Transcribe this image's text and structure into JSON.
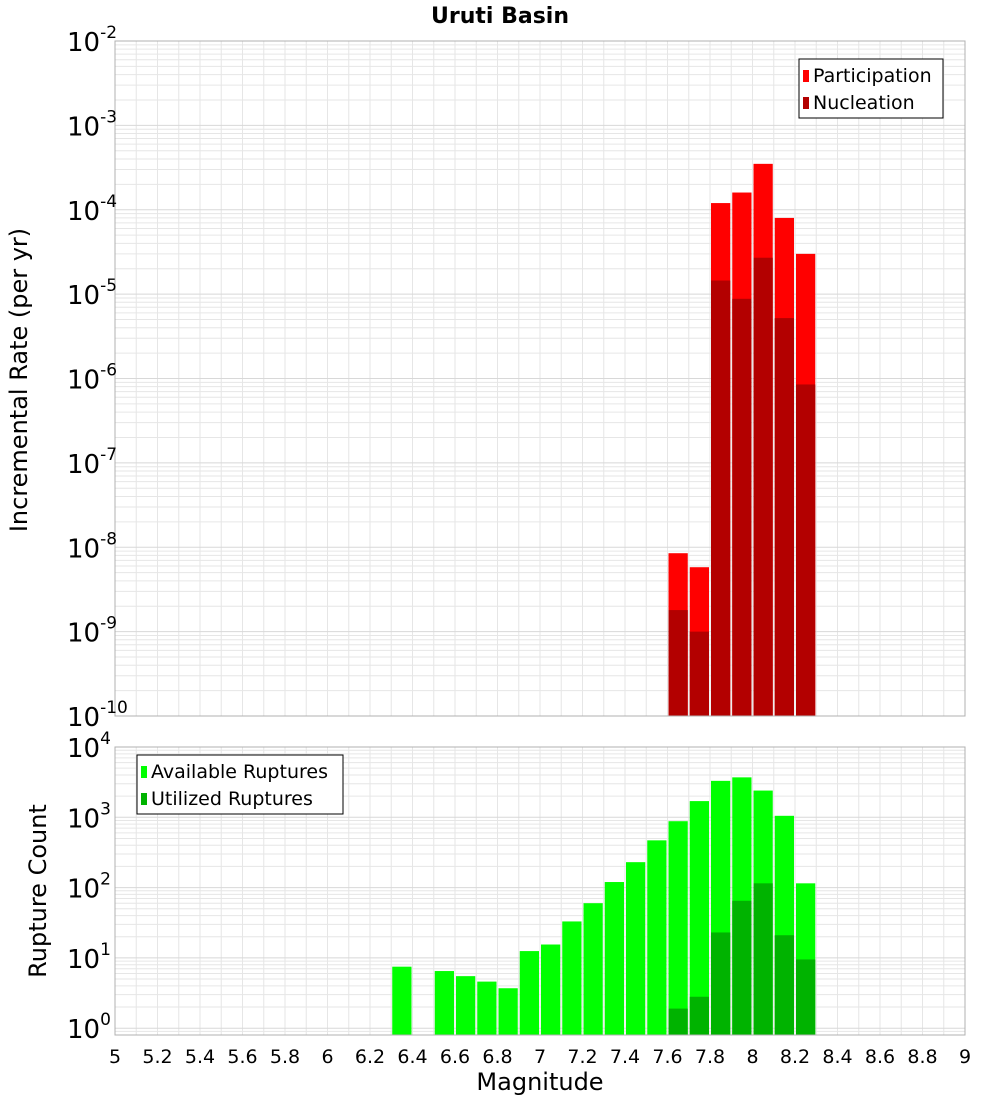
{
  "chart_data": [
    {
      "type": "bar",
      "panel": "top",
      "title": "Uruti Basin",
      "xlabel": "",
      "ylabel": "Incremental Rate (per yr)",
      "yscale": "log",
      "ylim": [
        1e-10,
        0.01
      ],
      "xlim": [
        5,
        9
      ],
      "bin_width": 0.1,
      "grid": true,
      "legend_position": "top-right",
      "y_tick_labels": [
        {
          "base": "10",
          "exp": "-10"
        },
        {
          "base": "10",
          "exp": "-9"
        },
        {
          "base": "10",
          "exp": "-8"
        },
        {
          "base": "10",
          "exp": "-7"
        },
        {
          "base": "10",
          "exp": "-6"
        },
        {
          "base": "10",
          "exp": "-5"
        },
        {
          "base": "10",
          "exp": "-4"
        },
        {
          "base": "10",
          "exp": "-3"
        },
        {
          "base": "10",
          "exp": "-2"
        }
      ],
      "series": [
        {
          "name": "Participation",
          "color": "#ff0000",
          "x": [
            7.65,
            7.75,
            7.85,
            7.95,
            8.05,
            8.15,
            8.25
          ],
          "values": [
            8.5e-09,
            5.8e-09,
            0.00012,
            0.00016,
            0.00035,
            8e-05,
            3e-05
          ]
        },
        {
          "name": "Nucleation",
          "color": "#b30000",
          "x": [
            7.65,
            7.75,
            7.85,
            7.95,
            8.05,
            8.15,
            8.25
          ],
          "values": [
            1.8e-09,
            1e-09,
            1.45e-05,
            8.8e-06,
            2.7e-05,
            5.2e-06,
            8.5e-07
          ]
        }
      ]
    },
    {
      "type": "bar",
      "panel": "bottom",
      "title": "",
      "xlabel": "Magnitude",
      "ylabel": "Rupture Count",
      "yscale": "log",
      "ylim": [
        0.8,
        10000
      ],
      "xlim": [
        5,
        9
      ],
      "bin_width": 0.1,
      "grid": true,
      "legend_position": "top-left",
      "x_tick_labels": [
        "5",
        "5.2",
        "5.4",
        "5.6",
        "5.8",
        "6",
        "6.2",
        "6.4",
        "6.6",
        "6.8",
        "7",
        "7.2",
        "7.4",
        "7.6",
        "7.8",
        "8",
        "8.2",
        "8.4",
        "8.6",
        "8.8",
        "9"
      ],
      "y_tick_labels": [
        {
          "base": "10",
          "exp": "0"
        },
        {
          "base": "10",
          "exp": "1"
        },
        {
          "base": "10",
          "exp": "2"
        },
        {
          "base": "10",
          "exp": "3"
        },
        {
          "base": "10",
          "exp": "4"
        }
      ],
      "series": [
        {
          "name": "Available Ruptures",
          "color": "#00ff00",
          "x": [
            6.35,
            6.55,
            6.65,
            6.75,
            6.85,
            6.95,
            7.05,
            7.15,
            7.25,
            7.35,
            7.45,
            7.55,
            7.65,
            7.75,
            7.85,
            7.95,
            8.05,
            8.15,
            8.25
          ],
          "values": [
            7.5,
            6.5,
            5.5,
            4.6,
            3.7,
            12.5,
            15.5,
            33,
            60,
            120,
            230,
            470,
            880,
            1700,
            3300,
            3700,
            2400,
            1050,
            115
          ]
        },
        {
          "name": "Utilized Ruptures",
          "color": "#00b300",
          "x": [
            7.65,
            7.75,
            7.85,
            7.95,
            8.05,
            8.15,
            8.25
          ],
          "values": [
            1.9,
            2.8,
            23,
            65,
            115,
            21,
            9.5
          ]
        }
      ]
    }
  ]
}
